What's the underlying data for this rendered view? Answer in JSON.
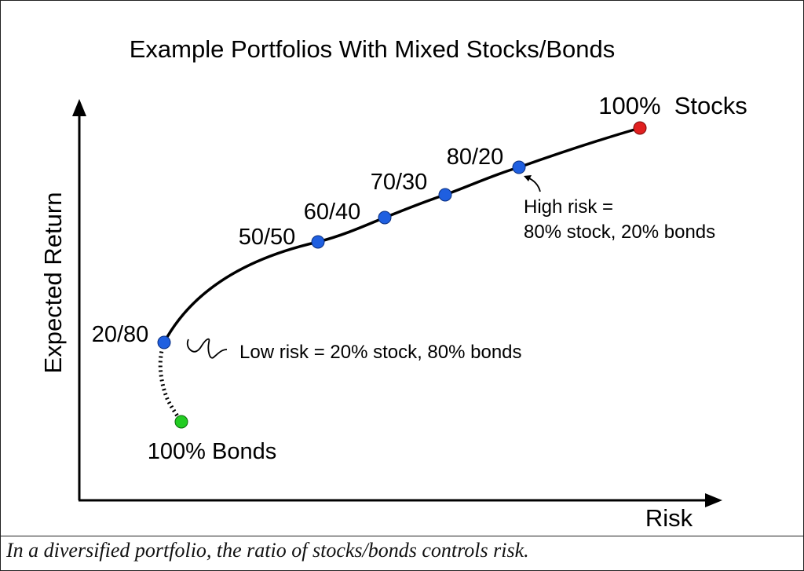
{
  "caption": "In a diversified portfolio, the ratio of stocks/bonds controls risk.",
  "chart_data": {
    "type": "line",
    "title": "Example Portfolios With Mixed Stocks/Bonds",
    "xlabel": "Risk",
    "ylabel": "Expected Return",
    "grid": false,
    "points": [
      {
        "label": "100% Bonds",
        "color": "#22cc22"
      },
      {
        "label": "20/80",
        "color": "#1f5fe0"
      },
      {
        "label": "50/50",
        "color": "#1f5fe0"
      },
      {
        "label": "60/40",
        "color": "#1f5fe0"
      },
      {
        "label": "70/30",
        "color": "#1f5fe0"
      },
      {
        "label": "80/20",
        "color": "#1f5fe0"
      },
      {
        "label": "100%  Stocks",
        "color": "#e02020"
      }
    ],
    "annotations": {
      "low_risk": "Low risk = 20% stock, 80% bonds",
      "high_risk_line1": "High risk =",
      "high_risk_line2": "80% stock, 20% bonds"
    }
  }
}
